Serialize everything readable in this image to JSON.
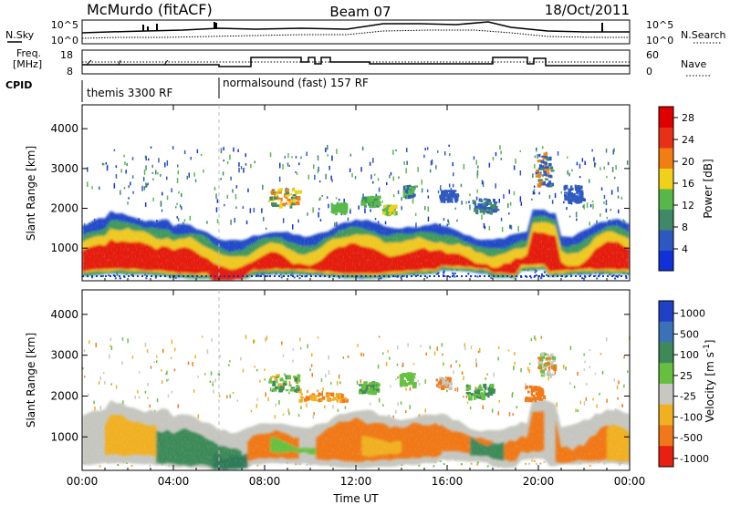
{
  "header": {
    "station": "McMurdo (fitACF)",
    "beam": "Beam 07",
    "date": "18/Oct/2011"
  },
  "top_panels": {
    "nsky_label": "N.Sky",
    "nsky_ticks": [
      "10^5",
      "10^0"
    ],
    "nsearch_label": "N.Search",
    "nsearch_ticks": [
      "10^5",
      "10^0"
    ],
    "freq_label_1": "Freq.",
    "freq_label_2": "[MHz]",
    "freq_ticks": [
      "18",
      "8"
    ],
    "nave_label": "Nave",
    "nave_ticks": [
      "60",
      "0"
    ],
    "cpid_label": "CPID",
    "cpid_segments": [
      {
        "label": "themis 3300 RF",
        "start_hour": 0
      },
      {
        "label": "normalsound (fast) 157 RF",
        "start_hour": 6
      }
    ]
  },
  "chart_data": [
    {
      "type": "heatmap",
      "name": "power-panel",
      "ylabel": "Slant Range [km]",
      "xlabel": "",
      "x_range_hours": [
        0,
        24
      ],
      "ylim": [
        180,
        4600
      ],
      "yticks": [
        "1000",
        "2000",
        "3000",
        "4000"
      ],
      "ytick_values": [
        1000,
        2000,
        3000,
        4000
      ],
      "colorbar": {
        "label": "Power [dB]",
        "ticks": [
          "4",
          "8",
          "12",
          "16",
          "20",
          "24",
          "28"
        ],
        "range": [
          0,
          30
        ],
        "colors": [
          "#1030d8",
          "#2d58c0",
          "#3f8868",
          "#56b848",
          "#f0d018",
          "#f07e10",
          "#e83018",
          "#e00000"
        ]
      }
    },
    {
      "type": "heatmap",
      "name": "velocity-panel",
      "ylabel": "Slant Range [km]",
      "xlabel": "Time UT",
      "x_range_hours": [
        0,
        24
      ],
      "ylim": [
        180,
        4600
      ],
      "yticks": [
        "1000",
        "2000",
        "3000",
        "4000"
      ],
      "ytick_values": [
        1000,
        2000,
        3000,
        4000
      ],
      "xticks": [
        "00:00",
        "04:00",
        "08:00",
        "12:00",
        "16:00",
        "20:00",
        "00:00"
      ],
      "xtick_hours": [
        0,
        4,
        8,
        12,
        16,
        20,
        24
      ],
      "colorbar": {
        "label": "Velocity [m s-1]",
        "ticks": [
          "1000",
          "500",
          "100",
          "25",
          "-25",
          "-100",
          "-500",
          "-1000"
        ],
        "colors": [
          "#2040c8",
          "#3a72b8",
          "#3d8a58",
          "#66c040",
          "#c8c8c0",
          "#f0b020",
          "#f07818",
          "#e82010"
        ]
      }
    }
  ]
}
